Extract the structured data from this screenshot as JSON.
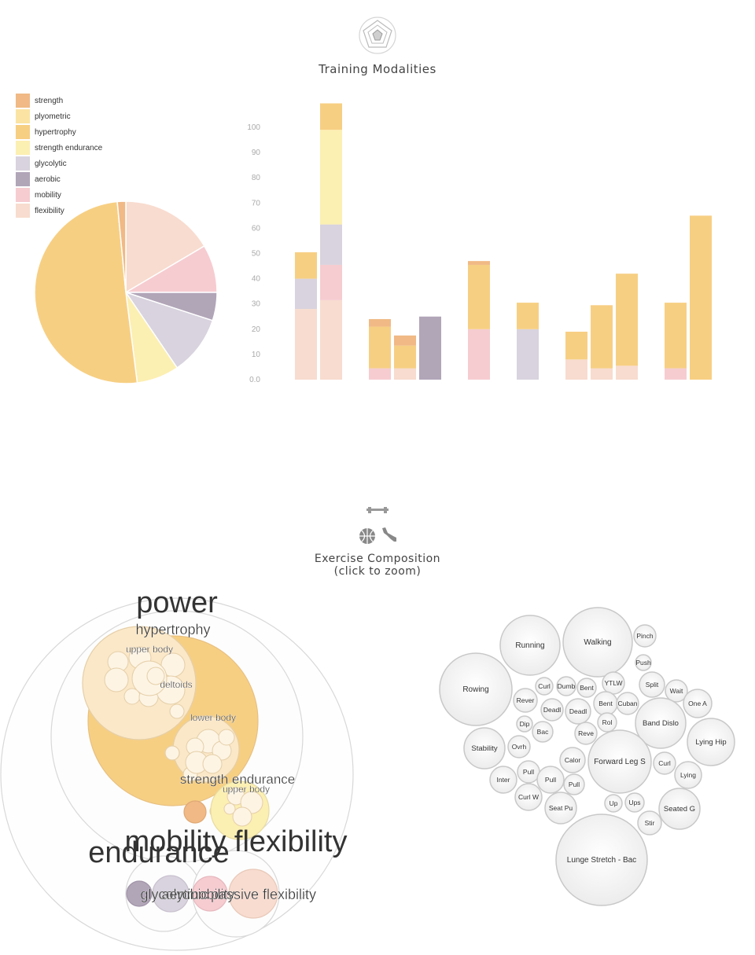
{
  "top_section": {
    "title": "Training Modalities",
    "icon": "radar-chart-icon"
  },
  "bottom_section": {
    "title_line1": "Exercise Composition",
    "title_line2": "(click to zoom)",
    "icons": [
      "dumbbell-icon",
      "basketball-icon",
      "running-shoe-icon"
    ]
  },
  "colors": {
    "strength": "#f0b985",
    "plyometric": "#fbe3a3",
    "hypertrophy": "#f7cf83",
    "strength endurance": "#fcefb2",
    "glycolytic": "#d8d3de",
    "aerobic": "#b1a5b8",
    "mobility": "#f6ccd1",
    "flexibility": "#f8dccf"
  },
  "chart_data": [
    {
      "type": "pie",
      "legend": [
        "strength",
        "plyometric",
        "hypertrophy",
        "strength endurance",
        "glycolytic",
        "aerobic",
        "mobility",
        "flexibility"
      ],
      "slices": [
        {
          "name": "flexibility",
          "value": 16.5
        },
        {
          "name": "mobility",
          "value": 8.5
        },
        {
          "name": "aerobic",
          "value": 5
        },
        {
          "name": "glycolytic",
          "value": 10.5
        },
        {
          "name": "strength endurance",
          "value": 7.5
        },
        {
          "name": "hypertrophy",
          "value": 50.5
        },
        {
          "name": "strength",
          "value": 1.5
        }
      ]
    },
    {
      "type": "bar",
      "stacked": true,
      "y_ticks": [
        "0.0",
        "10",
        "20",
        "30",
        "40",
        "50",
        "60",
        "70",
        "80",
        "90",
        "100"
      ],
      "ylim": [
        0,
        110
      ],
      "bars": [
        {
          "group": 0,
          "segments": [
            {
              "name": "flexibility",
              "value": 28
            },
            {
              "name": "glycolytic",
              "value": 12
            },
            {
              "name": "hypertrophy",
              "value": 10.5
            }
          ]
        },
        {
          "group": 0,
          "segments": [
            {
              "name": "flexibility",
              "value": 31.5
            },
            {
              "name": "mobility",
              "value": 14
            },
            {
              "name": "glycolytic",
              "value": 16
            },
            {
              "name": "strength endurance",
              "value": 37.5
            },
            {
              "name": "hypertrophy",
              "value": 10.5
            }
          ]
        },
        {
          "group": 1,
          "segments": [
            {
              "name": "mobility",
              "value": 4.5
            },
            {
              "name": "hypertrophy",
              "value": 16.5
            },
            {
              "name": "strength",
              "value": 3
            }
          ]
        },
        {
          "group": 1,
          "segments": [
            {
              "name": "flexibility",
              "value": 4.5
            },
            {
              "name": "hypertrophy",
              "value": 9
            },
            {
              "name": "strength",
              "value": 4
            }
          ]
        },
        {
          "group": 1,
          "segments": [
            {
              "name": "aerobic",
              "value": 25
            }
          ]
        },
        {
          "group": 2,
          "segments": [
            {
              "name": "mobility",
              "value": 20
            },
            {
              "name": "hypertrophy",
              "value": 25.5
            },
            {
              "name": "strength",
              "value": 1.5
            }
          ]
        },
        {
          "group": 3,
          "segments": [
            {
              "name": "glycolytic",
              "value": 20
            },
            {
              "name": "hypertrophy",
              "value": 10.5
            }
          ]
        },
        {
          "group": 4,
          "segments": [
            {
              "name": "flexibility",
              "value": 8
            },
            {
              "name": "hypertrophy",
              "value": 11
            }
          ]
        },
        {
          "group": 4,
          "segments": [
            {
              "name": "flexibility",
              "value": 4.5
            },
            {
              "name": "hypertrophy",
              "value": 25
            }
          ]
        },
        {
          "group": 4,
          "segments": [
            {
              "name": "flexibility",
              "value": 5.5
            },
            {
              "name": "hypertrophy",
              "value": 36.5
            }
          ]
        },
        {
          "group": 5,
          "segments": [
            {
              "name": "mobility",
              "value": 4.5
            },
            {
              "name": "hypertrophy",
              "value": 26
            }
          ]
        },
        {
          "group": 5,
          "segments": [
            {
              "name": "hypertrophy",
              "value": 65
            }
          ]
        }
      ]
    },
    {
      "type": "circle-pack",
      "circles": [
        {
          "label": "",
          "kind": "ring"
        },
        {
          "label": "",
          "kind": "ring"
        },
        {
          "label": "",
          "kind": "ring"
        },
        {
          "label": "",
          "kind": "group",
          "color": "hypertrophy"
        },
        {
          "label": "",
          "kind": "sub"
        },
        {
          "label": "",
          "kind": "sub"
        },
        {
          "label": "",
          "kind": "sub"
        },
        {
          "label": "",
          "kind": "leaf",
          "color": "strength"
        },
        {
          "label": "",
          "kind": "leaf",
          "color": "strength"
        },
        {
          "label": "",
          "kind": "group",
          "color": "strength endurance"
        },
        {
          "label": "",
          "kind": "ring"
        },
        {
          "label": "",
          "kind": "ring"
        },
        {
          "label": "",
          "kind": "leaf",
          "color": "aerobic"
        },
        {
          "label": "",
          "kind": "leaf",
          "color": "glycolytic"
        },
        {
          "label": "",
          "kind": "leaf",
          "color": "mobility"
        },
        {
          "label": "",
          "kind": "leaf",
          "color": "flexibility"
        }
      ],
      "labels": [
        "power",
        "hypertrophy",
        "upper body",
        "deltoids",
        "lower body",
        "strength endurance",
        "upper body",
        "mobility flexibility",
        "endurance",
        "glycolytic",
        "aerobic",
        "mobility",
        "passive flexibility"
      ]
    },
    {
      "type": "bubble",
      "bubbles": [
        "Running",
        "Walking",
        "Pinch",
        "Push",
        "Rowing",
        "Curl",
        "Dumb",
        "Bent",
        "YTLW",
        "Split",
        "Wait",
        "One A",
        "Rever",
        "Deadl",
        "Deadl",
        "Bent",
        "Cuban",
        "Band Dislo",
        "Dip",
        "Rol",
        "Bac",
        "Lying Hip",
        "Stability",
        "Ovrh",
        "Reve",
        "Forward Leg S",
        "Curl",
        "Inter",
        "Calor",
        "Pull",
        "Pull",
        "Lying",
        "Pull",
        "Curl W",
        "Seat Pu",
        "Up",
        "Ups",
        "Seated G",
        "Stir",
        "Lunge Stretch - Bac"
      ]
    }
  ]
}
